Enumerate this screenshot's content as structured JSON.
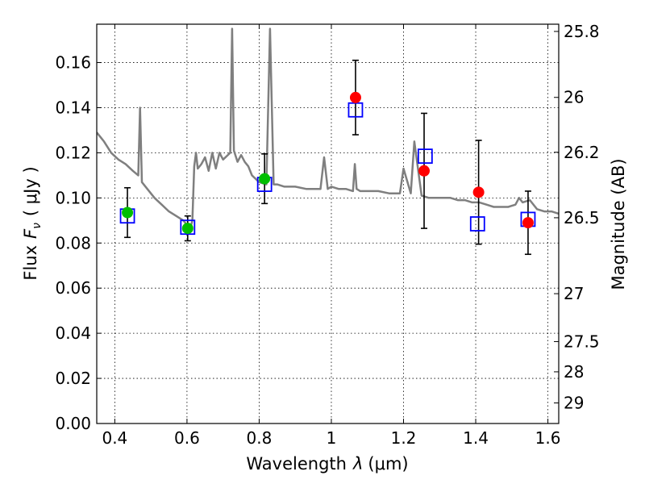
{
  "chart_data": {
    "type": "scatter",
    "xlabel": "Wavelength",
    "xlabel_symbol": "λ",
    "xlabel_unit": "(μm)",
    "ylabel": "Flux",
    "ylabel_symbol": "F",
    "ylabel_subscript": "ν",
    "ylabel_unit": "( μJy )",
    "y2label": "Magnitude (AB)",
    "xlim": [
      0.35,
      1.63
    ],
    "ylim": [
      0.0,
      0.177
    ],
    "grid": true,
    "x_ticks": [
      {
        "value": 0.4,
        "label": "0.4"
      },
      {
        "value": 0.6,
        "label": "0.6"
      },
      {
        "value": 0.8,
        "label": "0.8"
      },
      {
        "value": 1.0,
        "label": "1"
      },
      {
        "value": 1.2,
        "label": "1.2"
      },
      {
        "value": 1.4,
        "label": "1.4"
      },
      {
        "value": 1.6,
        "label": "1.6"
      }
    ],
    "y_ticks": [
      {
        "value": 0.0,
        "label": "0.00"
      },
      {
        "value": 0.02,
        "label": "0.02"
      },
      {
        "value": 0.04,
        "label": "0.04"
      },
      {
        "value": 0.06,
        "label": "0.06"
      },
      {
        "value": 0.08,
        "label": "0.08"
      },
      {
        "value": 0.1,
        "label": "0.10"
      },
      {
        "value": 0.12,
        "label": "0.12"
      },
      {
        "value": 0.14,
        "label": "0.14"
      },
      {
        "value": 0.16,
        "label": "0.16"
      }
    ],
    "y2_ticks": [
      {
        "mag": 25.8,
        "label": "25.8"
      },
      {
        "mag": 26.0,
        "label": "26"
      },
      {
        "mag": 26.2,
        "label": "26.2"
      },
      {
        "mag": 26.5,
        "label": "26.5"
      },
      {
        "mag": 27.0,
        "label": "27"
      },
      {
        "mag": 27.5,
        "label": "27.5"
      },
      {
        "mag": 28.0,
        "label": "28"
      },
      {
        "mag": 29.0,
        "label": "29"
      }
    ],
    "series": [
      {
        "kind": "line",
        "color": "#7f7f7f",
        "x": [
          0.35,
          0.37,
          0.39,
          0.41,
          0.43,
          0.45,
          0.465,
          0.47,
          0.475,
          0.49,
          0.51,
          0.53,
          0.55,
          0.57,
          0.59,
          0.6,
          0.61,
          0.615,
          0.62,
          0.625,
          0.63,
          0.64,
          0.65,
          0.66,
          0.67,
          0.68,
          0.69,
          0.7,
          0.72,
          0.725,
          0.73,
          0.74,
          0.75,
          0.76,
          0.77,
          0.78,
          0.8,
          0.82,
          0.83,
          0.84,
          0.85,
          0.87,
          0.9,
          0.93,
          0.95,
          0.97,
          0.98,
          0.99,
          1.0,
          1.02,
          1.04,
          1.06,
          1.065,
          1.07,
          1.08,
          1.1,
          1.13,
          1.16,
          1.19,
          1.2,
          1.22,
          1.23,
          1.25,
          1.27,
          1.29,
          1.31,
          1.33,
          1.35,
          1.37,
          1.39,
          1.41,
          1.43,
          1.45,
          1.47,
          1.49,
          1.51,
          1.52,
          1.53,
          1.55,
          1.57,
          1.59,
          1.61,
          1.63
        ],
        "y": [
          0.129,
          0.125,
          0.12,
          0.117,
          0.115,
          0.112,
          0.11,
          0.14,
          0.107,
          0.104,
          0.1,
          0.097,
          0.094,
          0.092,
          0.09,
          0.088,
          0.087,
          0.09,
          0.114,
          0.12,
          0.113,
          0.115,
          0.118,
          0.112,
          0.12,
          0.113,
          0.12,
          0.117,
          0.12,
          0.175,
          0.121,
          0.116,
          0.119,
          0.116,
          0.114,
          0.11,
          0.107,
          0.106,
          0.175,
          0.106,
          0.106,
          0.105,
          0.105,
          0.104,
          0.104,
          0.104,
          0.118,
          0.104,
          0.105,
          0.104,
          0.104,
          0.103,
          0.115,
          0.104,
          0.103,
          0.103,
          0.103,
          0.102,
          0.102,
          0.113,
          0.102,
          0.125,
          0.101,
          0.1,
          0.1,
          0.1,
          0.1,
          0.099,
          0.099,
          0.098,
          0.098,
          0.097,
          0.096,
          0.096,
          0.096,
          0.097,
          0.1,
          0.098,
          0.099,
          0.095,
          0.094,
          0.094,
          0.093
        ]
      },
      {
        "kind": "scatter",
        "marker": "circle",
        "color": "#00bf00",
        "x": [
          0.435,
          0.602,
          0.815
        ],
        "y": [
          0.0935,
          0.0865,
          0.1085
        ]
      },
      {
        "kind": "scatter",
        "marker": "circle",
        "color": "#ff0000",
        "x": [
          1.067,
          1.257,
          1.408,
          1.545
        ],
        "y": [
          0.1445,
          0.112,
          0.1025,
          0.089
        ]
      },
      {
        "kind": "scatter",
        "marker": "open-square",
        "color": "#0000ff",
        "x": [
          0.435,
          0.602,
          0.815,
          1.067,
          1.26,
          1.405,
          1.545
        ],
        "y": [
          0.092,
          0.087,
          0.106,
          0.139,
          0.1185,
          0.0885,
          0.0905
        ]
      },
      {
        "kind": "errorbar",
        "color": "#000000",
        "x": [
          0.435,
          0.602,
          0.815,
          1.067,
          1.257,
          1.408,
          1.545
        ],
        "y": [
          0.0935,
          0.0865,
          0.1085,
          0.1445,
          0.112,
          0.1025,
          0.089
        ],
        "err": [
          0.011,
          0.0055,
          0.011,
          0.0165,
          0.0255,
          0.023,
          0.014
        ]
      }
    ]
  }
}
